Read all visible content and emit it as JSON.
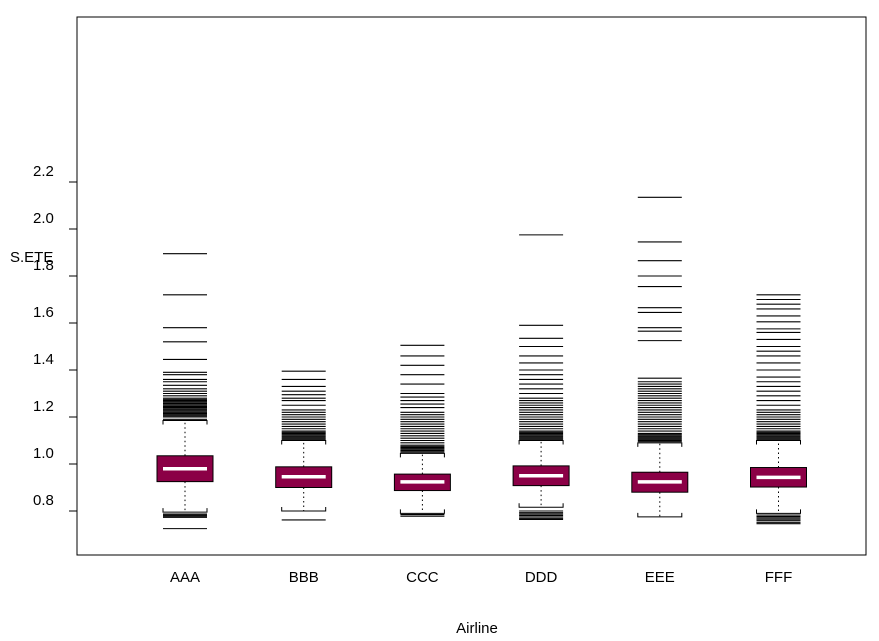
{
  "chart_data": {
    "type": "boxplot",
    "xlabel": "Airline",
    "ylabel": "S.ETE",
    "ylim": [
      0.75,
      2.2
    ],
    "yticks": [
      "0.8",
      "1.0",
      "1.2",
      "1.4",
      "1.6",
      "1.8",
      "2.0",
      "2.2"
    ],
    "categories": [
      "AAA",
      "BBB",
      "CCC",
      "DDD",
      "EEE",
      "FFF"
    ],
    "box_color": "#8b0046",
    "median_color": "#ffffff",
    "series": [
      {
        "category": "AAA",
        "whisker_low": 0.795,
        "q1": 0.925,
        "median": 0.98,
        "q3": 1.035,
        "whisker_high": 1.185,
        "outliers_low": [
          0.787,
          0.782,
          0.778,
          0.773,
          0.725
        ],
        "outliers_high": [
          1.19,
          1.2,
          1.205,
          1.21,
          1.215,
          1.22,
          1.225,
          1.23,
          1.235,
          1.24,
          1.245,
          1.25,
          1.255,
          1.26,
          1.265,
          1.27,
          1.275,
          1.28,
          1.29,
          1.3,
          1.31,
          1.32,
          1.335,
          1.35,
          1.36,
          1.38,
          1.39,
          1.445,
          1.52,
          1.58,
          1.72,
          1.895
        ]
      },
      {
        "category": "BBB",
        "whisker_low": 0.8,
        "q1": 0.9,
        "median": 0.946,
        "q3": 0.988,
        "whisker_high": 1.1,
        "outliers_low": [
          0.762
        ],
        "outliers_high": [
          1.105,
          1.11,
          1.115,
          1.12,
          1.125,
          1.13,
          1.135,
          1.14,
          1.15,
          1.16,
          1.17,
          1.18,
          1.19,
          1.2,
          1.21,
          1.22,
          1.23,
          1.25,
          1.27,
          1.28,
          1.295,
          1.31,
          1.33,
          1.36,
          1.395
        ]
      },
      {
        "category": "CCC",
        "whisker_low": 0.79,
        "q1": 0.887,
        "median": 0.924,
        "q3": 0.957,
        "whisker_high": 1.045,
        "outliers_low": [
          0.785,
          0.778
        ],
        "outliers_high": [
          1.05,
          1.055,
          1.06,
          1.065,
          1.07,
          1.075,
          1.08,
          1.09,
          1.1,
          1.11,
          1.12,
          1.13,
          1.14,
          1.15,
          1.16,
          1.17,
          1.18,
          1.19,
          1.2,
          1.21,
          1.22,
          1.24,
          1.255,
          1.27,
          1.285,
          1.3,
          1.34,
          1.38,
          1.42,
          1.46,
          1.505
        ]
      },
      {
        "category": "DDD",
        "whisker_low": 0.816,
        "q1": 0.908,
        "median": 0.95,
        "q3": 0.992,
        "whisker_high": 1.1,
        "outliers_low": [
          0.8,
          0.793,
          0.787,
          0.781,
          0.775,
          0.769,
          0.764
        ],
        "outliers_high": [
          1.105,
          1.11,
          1.115,
          1.12,
          1.125,
          1.13,
          1.135,
          1.14,
          1.15,
          1.16,
          1.17,
          1.18,
          1.19,
          1.2,
          1.21,
          1.22,
          1.23,
          1.24,
          1.25,
          1.26,
          1.27,
          1.28,
          1.3,
          1.32,
          1.34,
          1.36,
          1.38,
          1.4,
          1.43,
          1.46,
          1.5,
          1.535,
          1.59,
          1.975
        ]
      },
      {
        "category": "EEE",
        "whisker_low": 0.775,
        "q1": 0.88,
        "median": 0.924,
        "q3": 0.965,
        "whisker_high": 1.09,
        "outliers_low": [],
        "outliers_high": [
          1.095,
          1.1,
          1.105,
          1.11,
          1.115,
          1.12,
          1.125,
          1.13,
          1.14,
          1.15,
          1.16,
          1.17,
          1.18,
          1.19,
          1.2,
          1.21,
          1.22,
          1.23,
          1.24,
          1.25,
          1.26,
          1.27,
          1.28,
          1.29,
          1.3,
          1.31,
          1.32,
          1.33,
          1.34,
          1.35,
          1.365,
          1.525,
          1.565,
          1.58,
          1.645,
          1.665,
          1.755,
          1.8,
          1.865,
          1.945,
          2.135
        ]
      },
      {
        "category": "FFF",
        "whisker_low": 0.79,
        "q1": 0.902,
        "median": 0.943,
        "q3": 0.985,
        "whisker_high": 1.1,
        "outliers_low": [
          0.783,
          0.777,
          0.771,
          0.765,
          0.759,
          0.752,
          0.746
        ],
        "outliers_high": [
          1.105,
          1.11,
          1.115,
          1.12,
          1.125,
          1.13,
          1.135,
          1.14,
          1.15,
          1.16,
          1.17,
          1.18,
          1.19,
          1.2,
          1.21,
          1.22,
          1.23,
          1.25,
          1.27,
          1.29,
          1.31,
          1.33,
          1.35,
          1.37,
          1.4,
          1.43,
          1.46,
          1.48,
          1.5,
          1.53,
          1.56,
          1.575,
          1.605,
          1.63,
          1.66,
          1.68,
          1.7,
          1.72
        ]
      }
    ]
  }
}
